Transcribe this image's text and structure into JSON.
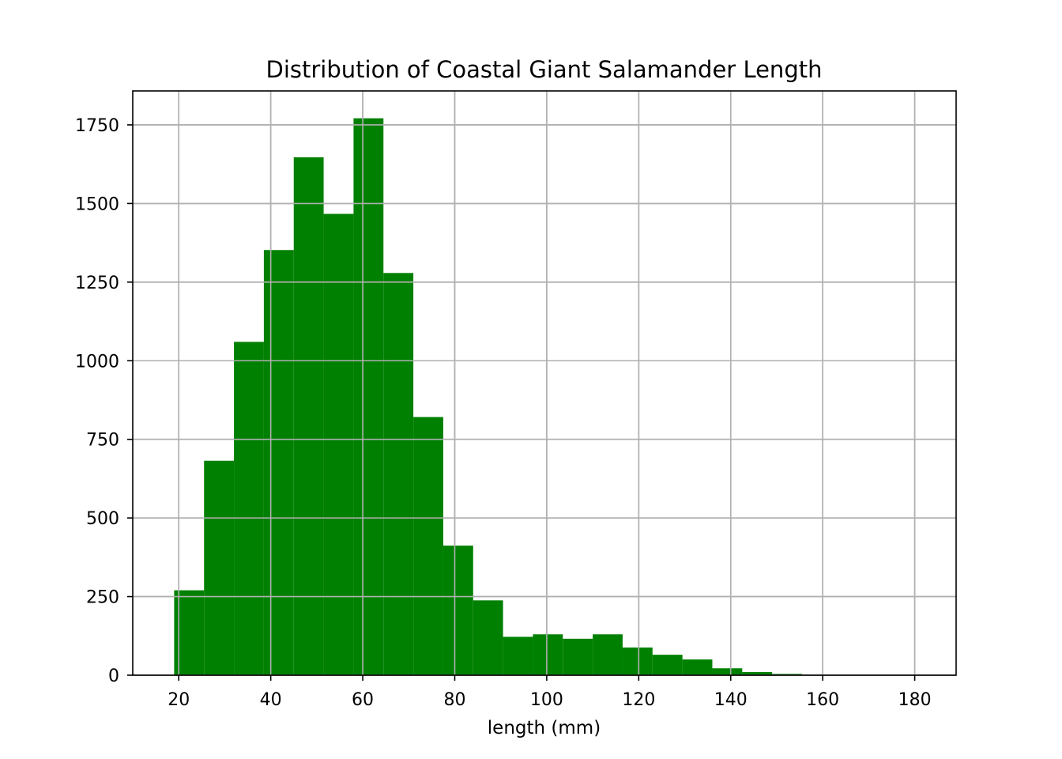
{
  "chart_data": {
    "type": "bar",
    "title": "Distribution of Coastal Giant Salamander Length",
    "xlabel": "length (mm)",
    "ylabel": "",
    "bin_edges": [
      19,
      25.5,
      32,
      38.5,
      45,
      51.5,
      58,
      64.5,
      71,
      77.5,
      84,
      90.5,
      97,
      103.5,
      110,
      116.5,
      123,
      129.5,
      136,
      142.5,
      149,
      155.5,
      162,
      168.5,
      175,
      181.5
    ],
    "values": [
      270,
      682,
      1060,
      1352,
      1647,
      1467,
      1771,
      1279,
      821,
      412,
      238,
      122,
      130,
      116,
      130,
      88,
      65,
      50,
      22,
      10,
      4,
      1,
      1,
      1,
      1
    ],
    "xlim": [
      10,
      189
    ],
    "ylim": [
      0,
      1858
    ],
    "xticks": [
      20,
      40,
      60,
      80,
      100,
      120,
      140,
      160,
      180
    ],
    "yticks": [
      0,
      250,
      500,
      750,
      1000,
      1250,
      1500,
      1750
    ],
    "grid": true,
    "bar_color": "#008000",
    "grid_color": "#b0b0b0"
  }
}
